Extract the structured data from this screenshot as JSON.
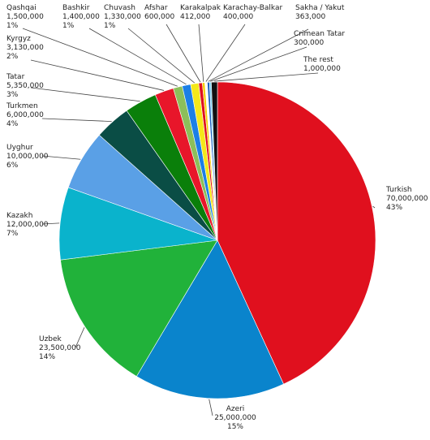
{
  "chart_data": {
    "type": "pie",
    "start_angle_deg": 0,
    "direction": "clockwise",
    "legend": "none",
    "slices": [
      {
        "name": "Turkish",
        "value": 70000000,
        "value_label": "70,000,000",
        "pct_label": "43%",
        "color": "#e0101e"
      },
      {
        "name": "Azeri",
        "value": 25000000,
        "value_label": "25,000,000",
        "pct_label": "15%",
        "color": "#0a84cc"
      },
      {
        "name": "Uzbek",
        "value": 23500000,
        "value_label": "23,500,000",
        "pct_label": "14%",
        "color": "#21b23a"
      },
      {
        "name": "Kazakh",
        "value": 12000000,
        "value_label": "12,000,000",
        "pct_label": "7%",
        "color": "#0ab3cc"
      },
      {
        "name": "Uyghur",
        "value": 10000000,
        "value_label": "10,000,000",
        "pct_label": "6%",
        "color": "#5aa0e6"
      },
      {
        "name": "Turkmen",
        "value": 6000000,
        "value_label": "6,000,000",
        "pct_label": "4%",
        "color": "#0a4d45"
      },
      {
        "name": "Tatar",
        "value": 5350000,
        "value_label": "5,350,000",
        "pct_label": "3%",
        "color": "#0a7f0a"
      },
      {
        "name": "Kyrgyz",
        "value": 3130000,
        "value_label": "3,130,000",
        "pct_label": "2%",
        "color": "#e8162a"
      },
      {
        "name": "Qashqai",
        "value": 1500000,
        "value_label": "1,500,000",
        "pct_label": "1%",
        "color": "#8cbf5a"
      },
      {
        "name": "Bashkir",
        "value": 1400000,
        "value_label": "1,400,000",
        "pct_label": "1%",
        "color": "#1c7fe6"
      },
      {
        "name": "Chuvash",
        "value": 1330000,
        "value_label": "1,330,000",
        "pct_label": "1%",
        "color": "#f4e81a"
      },
      {
        "name": "Afshar",
        "value": 600000,
        "value_label": "600,000",
        "pct_label": "",
        "color": "#e0101e"
      },
      {
        "name": "Karakalpak",
        "value": 412000,
        "value_label": "412,000",
        "pct_label": "",
        "color": "#f6d000"
      },
      {
        "name": "Karachay-Balkar",
        "value": 400000,
        "value_label": "400,000",
        "pct_label": "",
        "color": "#ffffff"
      },
      {
        "name": "Sakha / Yakut",
        "value": 363000,
        "value_label": "363,000",
        "pct_label": "",
        "color": "#1a5fc0"
      },
      {
        "name": "Crimean Tatar",
        "value": 300000,
        "value_label": "300,000",
        "pct_label": "",
        "color": "#7fd0ee"
      },
      {
        "name": "The rest",
        "value": 1000000,
        "value_label": "1,000,000",
        "pct_label": "",
        "color": "#111111"
      }
    ]
  }
}
